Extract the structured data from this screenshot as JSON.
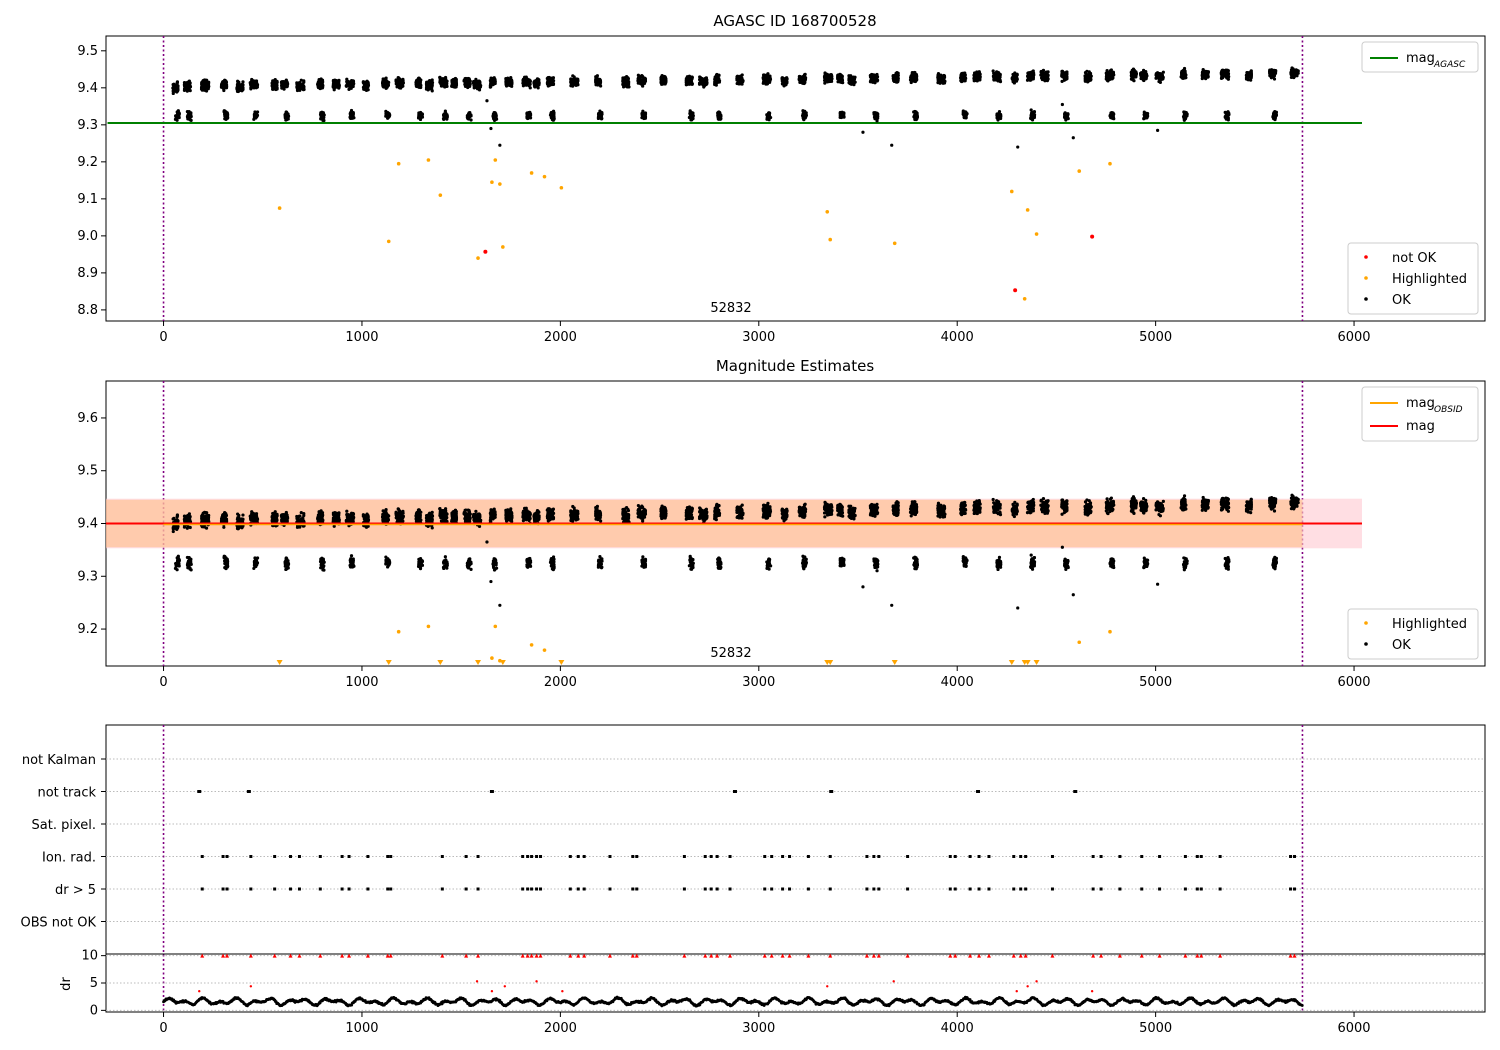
{
  "panels": {
    "top": {
      "title": "AGASC ID 168700528",
      "annotation": "52832",
      "ylim": [
        8.77,
        9.54
      ],
      "yticks": [
        "8.8",
        "8.9",
        "9.0",
        "9.1",
        "9.2",
        "9.3",
        "9.4",
        "9.5"
      ],
      "legend_lines": [
        {
          "label_main": "mag",
          "label_sub": "AGASC",
          "color": "#008000"
        }
      ],
      "legend_points": [
        {
          "label": "not OK",
          "color": "#ff0000"
        },
        {
          "label": "Highlighted",
          "color": "#ffa500"
        },
        {
          "label": "OK",
          "color": "#000000"
        }
      ]
    },
    "middle": {
      "title": "Magnitude Estimates",
      "annotation": "52832",
      "ylim": [
        9.13,
        9.67
      ],
      "yticks": [
        "9.2",
        "9.3",
        "9.4",
        "9.5",
        "9.6"
      ],
      "legend_lines": [
        {
          "label_main": "mag",
          "label_sub": "OBSID",
          "color": "#ffa500"
        },
        {
          "label_main": "mag",
          "label_sub": "",
          "color": "#ff0000"
        }
      ],
      "legend_points": [
        {
          "label": "Highlighted",
          "color": "#ffa500"
        },
        {
          "label": "OK",
          "color": "#000000"
        }
      ]
    },
    "flags": {
      "labels": [
        "not Kalman",
        "not track",
        "Sat. pixel.",
        "Ion. rad.",
        "dr > 5",
        "OBS not OK"
      ]
    },
    "dr": {
      "ylabel": "dr",
      "ylim": [
        -0.3,
        10.3
      ],
      "yticks": [
        "0",
        "5",
        "10"
      ]
    }
  },
  "xaxis": {
    "xlim": [
      -290,
      6660
    ],
    "xticks": [
      "0",
      "1000",
      "2000",
      "3000",
      "4000",
      "5000",
      "6000"
    ]
  },
  "chart_data": {
    "type": "scatter",
    "x_range_data": [
      0,
      5740
    ],
    "reference_lines": {
      "mag_agasc": 9.305,
      "mag": 9.4,
      "mag_band": [
        9.353,
        9.447
      ],
      "mag_obsid_band": [
        9.355,
        9.445
      ],
      "vertical_markers": [
        0,
        5740
      ]
    },
    "observation_clusters": [
      60,
      120,
      210,
      305,
      385,
      455,
      560,
      610,
      690,
      790,
      870,
      940,
      1020,
      1120,
      1190,
      1285,
      1340,
      1410,
      1465,
      1530,
      1580,
      1660,
      1740,
      1830,
      1880,
      1950,
      2070,
      2190,
      2330,
      2410,
      2520,
      2650,
      2720,
      2790,
      2905,
      3040,
      3130,
      3220,
      3350,
      3410,
      3470,
      3580,
      3690,
      3780,
      3920,
      4030,
      4100,
      4200,
      4290,
      4370,
      4440,
      4540,
      4660,
      4770,
      4890,
      4940,
      5020,
      5140,
      5250,
      5350,
      5470,
      5590,
      5700
    ],
    "highlighted_points": [
      {
        "x": 585,
        "y": 9.075
      },
      {
        "x": 1135,
        "y": 8.985
      },
      {
        "x": 1185,
        "y": 9.195
      },
      {
        "x": 1335,
        "y": 9.205
      },
      {
        "x": 1395,
        "y": 9.11
      },
      {
        "x": 1585,
        "y": 8.94
      },
      {
        "x": 1655,
        "y": 9.145
      },
      {
        "x": 1672,
        "y": 9.205
      },
      {
        "x": 1695,
        "y": 9.14
      },
      {
        "x": 1710,
        "y": 8.97
      },
      {
        "x": 1855,
        "y": 9.17
      },
      {
        "x": 1920,
        "y": 9.16
      },
      {
        "x": 2005,
        "y": 9.13
      },
      {
        "x": 3345,
        "y": 9.065
      },
      {
        "x": 3360,
        "y": 8.99
      },
      {
        "x": 3685,
        "y": 8.98
      },
      {
        "x": 4275,
        "y": 9.12
      },
      {
        "x": 4340,
        "y": 8.83
      },
      {
        "x": 4355,
        "y": 9.07
      },
      {
        "x": 4400,
        "y": 9.005
      },
      {
        "x": 4615,
        "y": 9.175
      },
      {
        "x": 4770,
        "y": 9.195
      }
    ],
    "not_ok_points": [
      {
        "x": 1622,
        "y": 8.957
      },
      {
        "x": 4292,
        "y": 8.853
      },
      {
        "x": 4680,
        "y": 8.998
      }
    ],
    "ok_outliers": [
      {
        "x": 1650,
        "y": 9.29
      },
      {
        "x": 1695,
        "y": 9.245
      },
      {
        "x": 3525,
        "y": 9.28
      },
      {
        "x": 3670,
        "y": 9.245
      },
      {
        "x": 4305,
        "y": 9.24
      },
      {
        "x": 4585,
        "y": 9.265
      },
      {
        "x": 5010,
        "y": 9.285
      },
      {
        "x": 4530,
        "y": 9.355
      },
      {
        "x": 1630,
        "y": 9.365
      }
    ],
    "flags": {
      "not track": [
        180,
        430,
        1655,
        2880,
        3365,
        4105,
        4595
      ],
      "Ion. rad.": [
        195,
        300,
        320,
        440,
        560,
        640,
        685,
        790,
        900,
        935,
        1030,
        1130,
        1145,
        1405,
        1525,
        1585,
        1810,
        1835,
        1855,
        1880,
        1900,
        2050,
        2090,
        2120,
        2250,
        2365,
        2385,
        2625,
        2730,
        2760,
        2790,
        2855,
        3030,
        3065,
        3120,
        3155,
        3250,
        3360,
        3545,
        3580,
        3605,
        3750,
        3965,
        3990,
        4065,
        4110,
        4160,
        4285,
        4320,
        4345,
        4480,
        4685,
        4725,
        4820,
        4930,
        5020,
        5150,
        5210,
        5230,
        5325,
        5680,
        5700
      ]
    },
    "dr_series": {
      "baseline": 1.6,
      "amplitude": 0.7
    },
    "dr_flagged": [
      180,
      440,
      1580,
      1655,
      1720,
      1880,
      2010,
      3345,
      3680,
      4300,
      4355,
      4400,
      4680
    ]
  }
}
